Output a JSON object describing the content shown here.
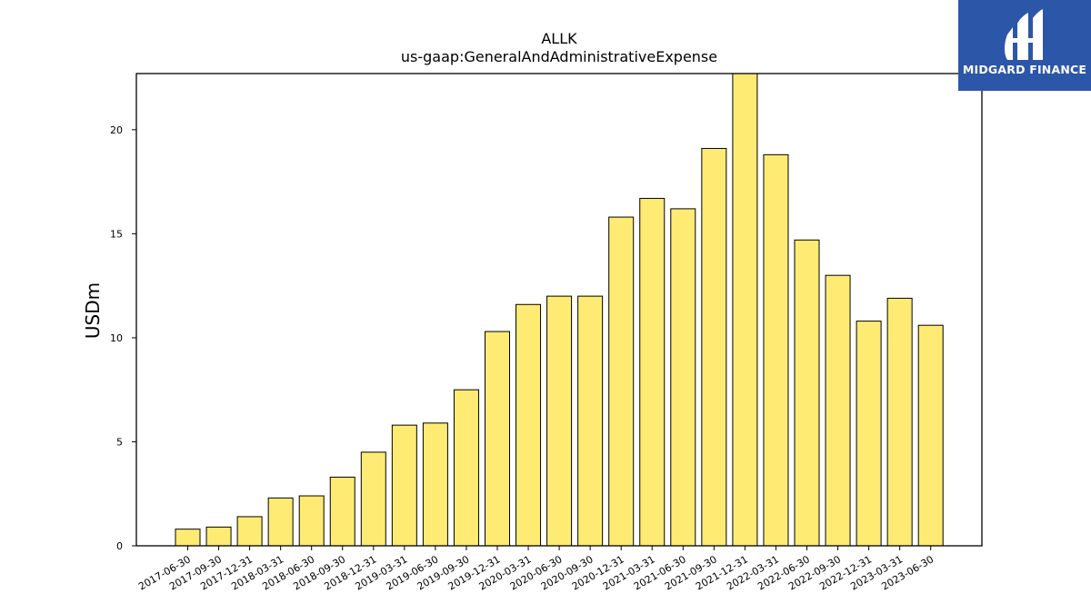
{
  "chart_data": {
    "type": "bar",
    "title": "ALLK",
    "subtitle": "us-gaap:GeneralAndAdministrativeExpense",
    "xlabel": "",
    "ylabel": "USDm",
    "ylim": [
      0,
      22.7
    ],
    "yticks": [
      0,
      5,
      10,
      15,
      20
    ],
    "grid": false,
    "bar_color": "#fdeb74",
    "edge_color": "#000000",
    "categories": [
      "2017-06-30",
      "2017-09-30",
      "2017-12-31",
      "2018-03-31",
      "2018-06-30",
      "2018-09-30",
      "2018-12-31",
      "2019-03-31",
      "2019-06-30",
      "2019-09-30",
      "2019-12-31",
      "2020-03-31",
      "2020-06-30",
      "2020-09-30",
      "2020-12-31",
      "2021-03-31",
      "2021-06-30",
      "2021-09-30",
      "2021-12-31",
      "2022-03-31",
      "2022-06-30",
      "2022-09-30",
      "2022-12-31",
      "2023-03-31",
      "2023-06-30"
    ],
    "values": [
      0.8,
      0.9,
      1.4,
      2.3,
      2.4,
      3.3,
      4.5,
      5.8,
      5.9,
      7.5,
      10.3,
      11.6,
      12.0,
      12.0,
      15.8,
      16.7,
      16.2,
      19.1,
      22.7,
      18.8,
      14.7,
      13.0,
      10.8,
      11.9,
      10.6
    ]
  },
  "logo": {
    "text": "MIDGARD FINANCE",
    "background": "#2c56a8"
  }
}
